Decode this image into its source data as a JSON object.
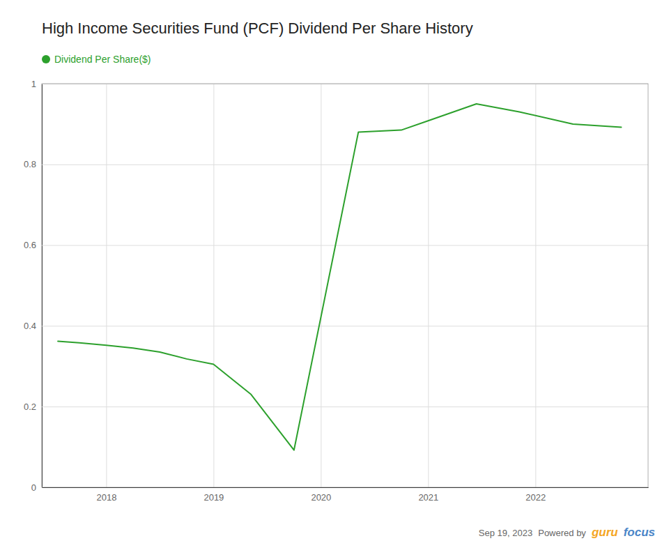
{
  "chart_data": {
    "type": "line",
    "title": "High Income Securities Fund (PCF) Dividend Per Share History",
    "x": [
      2017.55,
      2017.75,
      2018.0,
      2018.25,
      2018.5,
      2018.75,
      2019.0,
      2019.35,
      2019.75,
      2020.35,
      2020.75,
      2021.0,
      2021.45,
      2021.85,
      2022.35,
      2022.8
    ],
    "series": [
      {
        "name": "Dividend Per Share($)",
        "color": "#2ca02c",
        "values": [
          0.362,
          0.358,
          0.352,
          0.345,
          0.335,
          0.318,
          0.305,
          0.23,
          0.092,
          0.88,
          0.885,
          0.908,
          0.95,
          0.93,
          0.9,
          0.892
        ]
      }
    ],
    "xlim": [
      2017.4,
      2023.05
    ],
    "xticks": [
      2018,
      2019,
      2020,
      2021,
      2022
    ],
    "ylim": [
      0,
      1
    ],
    "yticks": [
      0,
      0.2,
      0.4,
      0.6,
      0.8,
      1
    ],
    "grid": true,
    "legend": "top-left",
    "annotations": [
      {
        "text": "Sep 19, 2023"
      },
      {
        "text": "Powered by"
      },
      {
        "text": "guru",
        "color": "#f5a623"
      },
      {
        "text": "focus",
        "color": "#4a86c8"
      }
    ]
  }
}
